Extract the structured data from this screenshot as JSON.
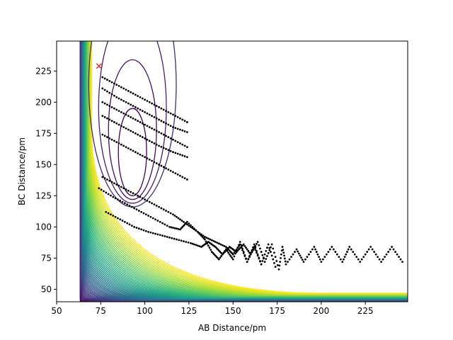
{
  "chart_data": {
    "type": "contour",
    "title": "",
    "xlabel": "AB Distance/pm",
    "ylabel": "BC Distance/pm",
    "xlim": [
      50,
      249
    ],
    "ylim": [
      40,
      249
    ],
    "xticks": [
      50,
      75,
      100,
      125,
      150,
      175,
      200,
      225
    ],
    "yticks": [
      50,
      75,
      100,
      125,
      150,
      175,
      200,
      225
    ],
    "grid": false,
    "legend": "none",
    "colormap": "viridis",
    "contour_levels": 60,
    "potential": {
      "wall_x": 63,
      "wall_y": 40,
      "asymptote_x": 250,
      "asymptote_y": 250,
      "well_center": [
        93,
        160
      ],
      "well_size": [
        8,
        35
      ]
    },
    "trajectory_color": "#000000",
    "series": [
      {
        "values": [
          [
            78,
            112
          ],
          [
            86,
            106
          ],
          [
            94,
            100
          ],
          [
            102,
            96
          ],
          [
            110,
            93
          ],
          [
            118,
            90
          ],
          [
            126,
            87
          ],
          [
            132,
            84
          ],
          [
            136,
            88
          ],
          [
            140,
            84
          ],
          [
            144,
            78
          ],
          [
            148,
            84
          ],
          [
            152,
            80
          ],
          [
            156,
            86
          ],
          [
            160,
            78
          ],
          [
            164,
            88
          ],
          [
            168,
            72
          ],
          [
            172,
            86
          ],
          [
            176,
            66
          ],
          [
            178,
            84
          ],
          [
            180,
            70
          ],
          [
            186,
            82
          ],
          [
            190,
            72
          ],
          [
            196,
            84
          ],
          [
            200,
            72
          ],
          [
            206,
            84
          ],
          [
            212,
            72
          ],
          [
            216,
            84
          ],
          [
            222,
            72
          ],
          [
            228,
            84
          ],
          [
            234,
            72
          ],
          [
            240,
            84
          ],
          [
            246,
            72
          ]
        ]
      },
      {
        "values": [
          [
            76,
            140
          ],
          [
            84,
            134
          ],
          [
            92,
            128
          ],
          [
            100,
            122
          ],
          [
            108,
            116
          ],
          [
            116,
            110
          ],
          [
            122,
            104
          ],
          [
            128,
            98
          ],
          [
            134,
            92
          ],
          [
            140,
            88
          ],
          [
            146,
            84
          ],
          [
            150,
            78
          ],
          [
            154,
            86
          ],
          [
            158,
            72
          ],
          [
            162,
            84
          ],
          [
            166,
            70
          ],
          [
            170,
            86
          ],
          [
            174,
            68
          ]
        ]
      },
      {
        "values": [
          [
            74,
            131
          ],
          [
            82,
            124
          ],
          [
            90,
            118
          ],
          [
            98,
            112
          ],
          [
            106,
            106
          ],
          [
            114,
            100
          ],
          [
            120,
            98
          ],
          [
            124,
            104
          ],
          [
            130,
            96
          ],
          [
            134,
            90
          ],
          [
            138,
            80
          ],
          [
            142,
            74
          ],
          [
            146,
            82
          ],
          [
            150,
            74
          ],
          [
            154,
            88
          ],
          [
            158,
            72
          ],
          [
            162,
            86
          ],
          [
            166,
            70
          ]
        ]
      },
      {
        "values": [
          [
            76,
            174
          ],
          [
            84,
            168
          ],
          [
            92,
            162
          ],
          [
            100,
            156
          ],
          [
            108,
            150
          ],
          [
            116,
            144
          ],
          [
            124,
            138
          ]
        ]
      },
      {
        "values": [
          [
            76,
            189
          ],
          [
            84,
            183
          ],
          [
            92,
            177
          ],
          [
            100,
            171
          ],
          [
            108,
            165
          ],
          [
            116,
            160
          ],
          [
            124,
            156
          ]
        ]
      },
      {
        "values": [
          [
            76,
            200
          ],
          [
            84,
            194
          ],
          [
            92,
            188
          ],
          [
            100,
            182
          ],
          [
            108,
            176
          ],
          [
            116,
            170
          ],
          [
            124,
            164
          ]
        ]
      },
      {
        "values": [
          [
            76,
            211
          ],
          [
            84,
            204
          ],
          [
            92,
            198
          ],
          [
            100,
            192
          ],
          [
            108,
            186
          ],
          [
            116,
            180
          ],
          [
            124,
            176
          ]
        ]
      },
      {
        "values": [
          [
            76,
            220
          ],
          [
            84,
            214
          ],
          [
            92,
            208
          ],
          [
            100,
            202
          ],
          [
            108,
            196
          ],
          [
            116,
            190
          ],
          [
            124,
            184
          ]
        ]
      }
    ],
    "start_marker": {
      "x": 74,
      "y": 229,
      "symbol": "x",
      "color": "#d62728"
    }
  }
}
